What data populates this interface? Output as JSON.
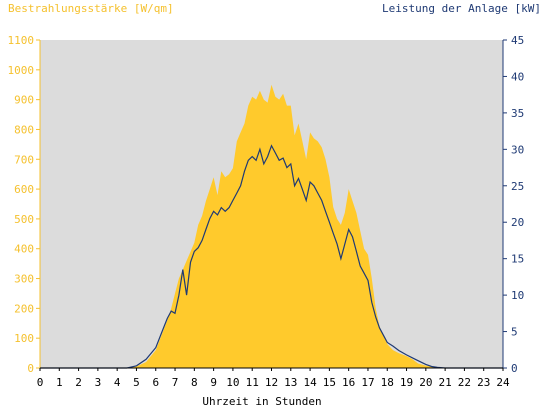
{
  "chart_data": {
    "type": "area",
    "left_axis_label": "Bestrahlungsstärke [W/qm]",
    "right_axis_label": "Leistung der Anlage [kW]",
    "xlabel": "Uhrzeit in Stunden",
    "xlim": [
      0,
      24
    ],
    "ylim_left": [
      0,
      1100
    ],
    "ylim_right": [
      0,
      45
    ],
    "x_ticks": [
      "0",
      "1",
      "2",
      "3",
      "4",
      "5",
      "6",
      "7",
      "8",
      "9",
      "10",
      "11",
      "12",
      "13",
      "14",
      "15",
      "16",
      "17",
      "18",
      "19",
      "20",
      "21",
      "22",
      "23",
      "24"
    ],
    "y_left_ticks": [
      "0",
      "100",
      "200",
      "300",
      "400",
      "500",
      "600",
      "700",
      "800",
      "900",
      "1000",
      "1100"
    ],
    "y_right_ticks": [
      "0",
      "5",
      "10",
      "15",
      "20",
      "25",
      "30",
      "35",
      "40",
      "45"
    ],
    "grid": false,
    "colors": {
      "irradiance_fill": "#ffca2c",
      "power_line": "#1f3a74",
      "plot_bg": "#dcdcdc",
      "left_text": "#f5c12e",
      "right_text": "#1f3a74"
    },
    "series": [
      {
        "axis": "left",
        "style": "area",
        "x": [
          0,
          4.5,
          5,
          5.5,
          6,
          6.3,
          6.6,
          6.8,
          7,
          7.2,
          7.4,
          7.6,
          7.8,
          8,
          8.2,
          8.4,
          8.6,
          8.8,
          9,
          9.2,
          9.4,
          9.6,
          9.8,
          10,
          10.2,
          10.4,
          10.6,
          10.8,
          11,
          11.2,
          11.4,
          11.6,
          11.8,
          12,
          12.2,
          12.4,
          12.6,
          12.8,
          13,
          13.2,
          13.4,
          13.6,
          13.8,
          14,
          14.2,
          14.4,
          14.6,
          14.8,
          15,
          15.2,
          15.4,
          15.6,
          15.8,
          16,
          16.2,
          16.4,
          16.6,
          16.8,
          17,
          17.2,
          17.4,
          17.6,
          17.8,
          18,
          18.3,
          18.6,
          19,
          19.3,
          19.6,
          20,
          20.3,
          20.6,
          21,
          24
        ],
        "values": [
          0,
          0,
          5,
          20,
          60,
          110,
          160,
          200,
          250,
          300,
          330,
          360,
          390,
          420,
          480,
          510,
          560,
          600,
          640,
          580,
          660,
          640,
          650,
          670,
          760,
          790,
          820,
          880,
          910,
          900,
          930,
          900,
          890,
          950,
          910,
          900,
          920,
          880,
          880,
          780,
          820,
          760,
          700,
          790,
          770,
          760,
          740,
          700,
          640,
          540,
          500,
          480,
          520,
          600,
          560,
          520,
          460,
          400,
          380,
          300,
          200,
          140,
          110,
          80,
          60,
          50,
          40,
          30,
          15,
          8,
          4,
          2,
          0,
          0
        ]
      },
      {
        "axis": "right",
        "style": "line",
        "x": [
          0,
          4.5,
          5,
          5.5,
          6,
          6.3,
          6.6,
          6.8,
          7,
          7.2,
          7.4,
          7.6,
          7.8,
          8,
          8.2,
          8.4,
          8.6,
          8.8,
          9,
          9.2,
          9.4,
          9.6,
          9.8,
          10,
          10.2,
          10.4,
          10.6,
          10.8,
          11,
          11.2,
          11.4,
          11.6,
          11.8,
          12,
          12.2,
          12.4,
          12.6,
          12.8,
          13,
          13.2,
          13.4,
          13.6,
          13.8,
          14,
          14.2,
          14.4,
          14.6,
          14.8,
          15,
          15.2,
          15.4,
          15.6,
          15.8,
          16,
          16.2,
          16.4,
          16.6,
          16.8,
          17,
          17.2,
          17.4,
          17.6,
          17.8,
          18,
          18.3,
          18.6,
          19,
          19.3,
          19.6,
          20,
          20.3,
          20.6,
          21,
          24
        ],
        "values": [
          0,
          0,
          0.3,
          1.2,
          2.8,
          4.8,
          6.8,
          7.8,
          7.5,
          10,
          13.5,
          10,
          14.5,
          16,
          16.5,
          17.5,
          19,
          20.5,
          21.5,
          21,
          22,
          21.5,
          22,
          23,
          24,
          25,
          27,
          28.5,
          29,
          28.5,
          30,
          28,
          29,
          30.5,
          29.5,
          28.5,
          28.8,
          27.5,
          28,
          25,
          26,
          24.5,
          23,
          25.5,
          25,
          24,
          23,
          21.5,
          20,
          18.5,
          17,
          15,
          17,
          19,
          18,
          16,
          14,
          13,
          12,
          9,
          7,
          5.5,
          4.5,
          3.5,
          3,
          2.4,
          1.8,
          1.4,
          1,
          0.5,
          0.2,
          0.1,
          0,
          0
        ]
      }
    ]
  }
}
